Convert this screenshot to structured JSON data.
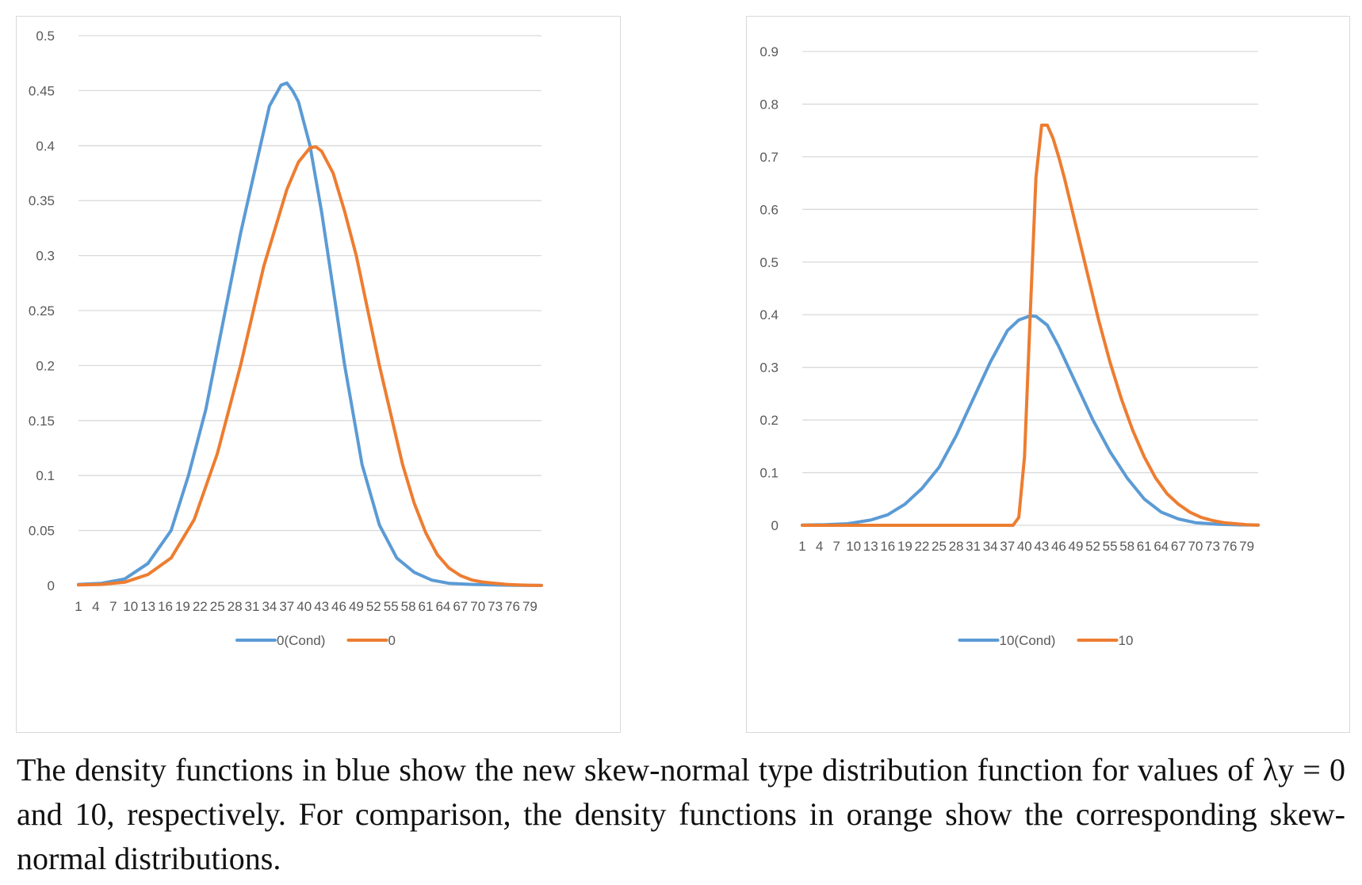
{
  "chart_data": [
    {
      "type": "line",
      "title": "",
      "xlabel": "",
      "ylabel": "",
      "x_range": [
        1,
        81
      ],
      "x_tick_labels": [
        "1",
        "4",
        "7",
        "10",
        "13",
        "16",
        "19",
        "22",
        "25",
        "28",
        "31",
        "34",
        "37",
        "40",
        "43",
        "46",
        "49",
        "52",
        "55",
        "58",
        "61",
        "64",
        "67",
        "70",
        "73",
        "76",
        "79"
      ],
      "ylim": [
        0,
        0.5
      ],
      "y_ticks": [
        "0",
        "0.05",
        "0.1",
        "0.15",
        "0.2",
        "0.25",
        "0.3",
        "0.35",
        "0.4",
        "0.45",
        "0.5"
      ],
      "grid": true,
      "legend": "bottom-center",
      "series": [
        {
          "name": "0(Cond)",
          "color": "#5b9bd5",
          "x": [
            1,
            5,
            9,
            13,
            17,
            20,
            23,
            26,
            29,
            32,
            34,
            36,
            37,
            38,
            39,
            41,
            43,
            45,
            47,
            50,
            53,
            56,
            59,
            62,
            65,
            69,
            73,
            77,
            81
          ],
          "y": [
            0.001,
            0.002,
            0.006,
            0.02,
            0.05,
            0.1,
            0.16,
            0.24,
            0.32,
            0.39,
            0.436,
            0.455,
            0.457,
            0.45,
            0.44,
            0.4,
            0.34,
            0.27,
            0.2,
            0.11,
            0.055,
            0.025,
            0.012,
            0.005,
            0.002,
            0.001,
            0.0005,
            0.0002,
            0.0001
          ]
        },
        {
          "name": "0",
          "color": "#ed7d31",
          "x": [
            1,
            5,
            9,
            13,
            17,
            21,
            25,
            29,
            33,
            37,
            39,
            41,
            42,
            43,
            45,
            47,
            49,
            51,
            53,
            55,
            57,
            59,
            61,
            63,
            65,
            67,
            69,
            71,
            73,
            75,
            77,
            79,
            81
          ],
          "y": [
            0.0005,
            0.001,
            0.003,
            0.01,
            0.025,
            0.06,
            0.12,
            0.2,
            0.29,
            0.36,
            0.385,
            0.398,
            0.399,
            0.395,
            0.375,
            0.34,
            0.3,
            0.25,
            0.2,
            0.155,
            0.11,
            0.075,
            0.048,
            0.028,
            0.016,
            0.009,
            0.005,
            0.003,
            0.002,
            0.001,
            0.0005,
            0.0002,
            0.0001
          ]
        }
      ]
    },
    {
      "type": "line",
      "title": "",
      "xlabel": "",
      "ylabel": "",
      "x_range": [
        1,
        81
      ],
      "x_tick_labels": [
        "1",
        "4",
        "7",
        "10",
        "13",
        "16",
        "19",
        "22",
        "25",
        "28",
        "31",
        "34",
        "37",
        "40",
        "43",
        "46",
        "49",
        "52",
        "55",
        "58",
        "61",
        "64",
        "67",
        "70",
        "73",
        "76",
        "79"
      ],
      "ylim": [
        0,
        0.9
      ],
      "y_ticks": [
        "0",
        "0.1",
        "0.2",
        "0.3",
        "0.4",
        "0.5",
        "0.6",
        "0.7",
        "0.8",
        "0.9"
      ],
      "grid": true,
      "legend": "bottom-center",
      "series": [
        {
          "name": "10(Cond)",
          "color": "#5b9bd5",
          "x": [
            1,
            5,
            9,
            13,
            16,
            19,
            22,
            25,
            28,
            31,
            34,
            37,
            39,
            41,
            42,
            44,
            46,
            49,
            52,
            55,
            58,
            61,
            64,
            67,
            70,
            74,
            78,
            81
          ],
          "y": [
            0.0005,
            0.001,
            0.003,
            0.01,
            0.02,
            0.04,
            0.07,
            0.11,
            0.17,
            0.24,
            0.31,
            0.37,
            0.39,
            0.398,
            0.397,
            0.38,
            0.34,
            0.27,
            0.2,
            0.14,
            0.09,
            0.05,
            0.025,
            0.012,
            0.005,
            0.002,
            0.0007,
            0.0003
          ]
        },
        {
          "name": "10",
          "color": "#ed7d31",
          "x": [
            1,
            10,
            20,
            30,
            38,
            39,
            40,
            41,
            42,
            43,
            44,
            45,
            46,
            47,
            49,
            51,
            53,
            55,
            57,
            59,
            61,
            63,
            65,
            67,
            69,
            71,
            73,
            75,
            77,
            79,
            81
          ],
          "y": [
            0,
            0,
            0,
            0,
            0,
            0.015,
            0.13,
            0.4,
            0.66,
            0.76,
            0.76,
            0.735,
            0.7,
            0.66,
            0.57,
            0.48,
            0.39,
            0.31,
            0.24,
            0.18,
            0.13,
            0.09,
            0.06,
            0.04,
            0.025,
            0.015,
            0.009,
            0.005,
            0.003,
            0.001,
            0.0005
          ]
        }
      ]
    }
  ],
  "caption": "The density functions in blue show the new skew-normal type distribution function for values of λy = 0 and 10, respectively. For comparison, the density functions in orange show the corresponding skew-normal distributions."
}
